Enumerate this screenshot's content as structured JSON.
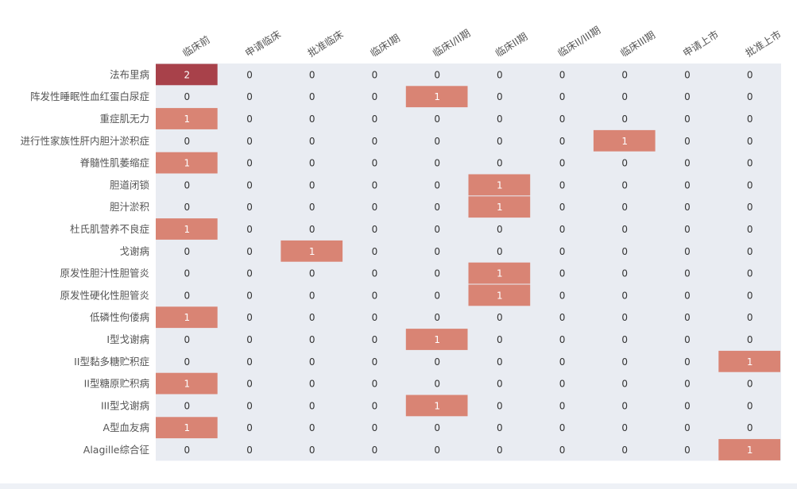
{
  "chart_data": {
    "type": "heatmap",
    "title": "",
    "xlabel": "",
    "ylabel": "",
    "x_categories": [
      "临床前",
      "申请临床",
      "批准临床",
      "临床I期",
      "临床I/II期",
      "临床II期",
      "临床II/III期",
      "临床III期",
      "申请上市",
      "批准上市"
    ],
    "y_categories": [
      "法布里病",
      "阵发性睡眠性血红蛋白尿症",
      "重症肌无力",
      "进行性家族性肝内胆汁淤积症",
      "脊髓性肌萎缩症",
      "胆道闭锁",
      "胆汁淤积",
      "杜氏肌营养不良症",
      "戈谢病",
      "原发性胆汁性胆管炎",
      "原发性硬化性胆管炎",
      "低磷性佝偻病",
      "I型戈谢病",
      "II型黏多糖贮积症",
      "II型糖原贮积病",
      "III型戈谢病",
      "A型血友病",
      "Alagille综合征"
    ],
    "values": [
      [
        2,
        0,
        0,
        0,
        0,
        0,
        0,
        0,
        0,
        0
      ],
      [
        0,
        0,
        0,
        0,
        1,
        0,
        0,
        0,
        0,
        0
      ],
      [
        1,
        0,
        0,
        0,
        0,
        0,
        0,
        0,
        0,
        0
      ],
      [
        0,
        0,
        0,
        0,
        0,
        0,
        0,
        1,
        0,
        0
      ],
      [
        1,
        0,
        0,
        0,
        0,
        0,
        0,
        0,
        0,
        0
      ],
      [
        0,
        0,
        0,
        0,
        0,
        1,
        0,
        0,
        0,
        0
      ],
      [
        0,
        0,
        0,
        0,
        0,
        1,
        0,
        0,
        0,
        0
      ],
      [
        1,
        0,
        0,
        0,
        0,
        0,
        0,
        0,
        0,
        0
      ],
      [
        0,
        0,
        1,
        0,
        0,
        0,
        0,
        0,
        0,
        0
      ],
      [
        0,
        0,
        0,
        0,
        0,
        1,
        0,
        0,
        0,
        0
      ],
      [
        0,
        0,
        0,
        0,
        0,
        1,
        0,
        0,
        0,
        0
      ],
      [
        1,
        0,
        0,
        0,
        0,
        0,
        0,
        0,
        0,
        0
      ],
      [
        0,
        0,
        0,
        0,
        1,
        0,
        0,
        0,
        0,
        0
      ],
      [
        0,
        0,
        0,
        0,
        0,
        0,
        0,
        0,
        0,
        1
      ],
      [
        1,
        0,
        0,
        0,
        0,
        0,
        0,
        0,
        0,
        0
      ],
      [
        0,
        0,
        0,
        0,
        1,
        0,
        0,
        0,
        0,
        0
      ],
      [
        1,
        0,
        0,
        0,
        0,
        0,
        0,
        0,
        0,
        0
      ],
      [
        0,
        0,
        0,
        0,
        0,
        0,
        0,
        0,
        0,
        1
      ]
    ],
    "colors": {
      "zero": "#e9ecf2",
      "one": "#d98474",
      "two": "#a8414a",
      "label": "#555555",
      "cell_text_zero": "#333333",
      "cell_text_nonzero": "#ffffff"
    },
    "grid": false,
    "legend": "none"
  }
}
